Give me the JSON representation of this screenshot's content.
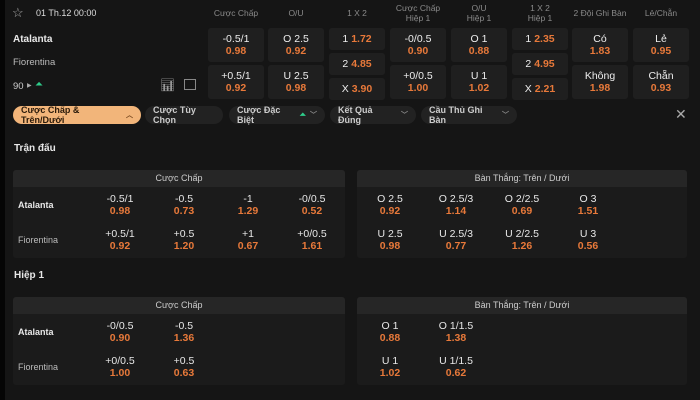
{
  "match": {
    "datetime": "01 Th.12 00:00",
    "home": "Atalanta",
    "away": "Fiorentina",
    "minute": "90"
  },
  "columns": [
    "Cược Chấp",
    "O/U",
    "1 X 2",
    "Cược Chấp\nHiệp 1",
    "O/U\nHiệp 1",
    "1 X 2\nHiệp 1",
    "2 Đội Ghi Bàn",
    "Lẻ/Chẵn"
  ],
  "odds": {
    "hdp": [
      {
        "line": "-0.5/1",
        "price": "0.98"
      },
      {
        "line": "+0.5/1",
        "price": "0.92"
      }
    ],
    "ou": [
      {
        "line": "O 2.5",
        "price": "0.92"
      },
      {
        "line": "U 2.5",
        "price": "0.98"
      }
    ],
    "x12": [
      {
        "line": "1",
        "price": "1.72"
      },
      {
        "line": "2",
        "price": "4.85"
      },
      {
        "line": "X",
        "price": "3.90"
      }
    ],
    "hdp_h1": [
      {
        "line": "-0/0.5",
        "price": "0.90"
      },
      {
        "line": "+0/0.5",
        "price": "1.00"
      }
    ],
    "ou_h1": [
      {
        "line": "O 1",
        "price": "0.88"
      },
      {
        "line": "U 1",
        "price": "1.02"
      }
    ],
    "x12_h1": [
      {
        "line": "1",
        "price": "2.35"
      },
      {
        "line": "2",
        "price": "4.95"
      },
      {
        "line": "X",
        "price": "2.21"
      }
    ],
    "btts": [
      {
        "line": "Có",
        "price": "1.83"
      },
      {
        "line": "Không",
        "price": "1.98"
      }
    ],
    "oddeven": [
      {
        "line": "Lẻ",
        "price": "0.95"
      },
      {
        "line": "Chẵn",
        "price": "0.93"
      }
    ]
  },
  "filters": [
    "Cược Chấp & Trên/Dưới",
    "Cược Tùy Chọn",
    "Cược Đặc Biệt",
    "Kết Quả Đúng",
    "Cầu Thủ Ghi Bàn"
  ],
  "sections": [
    {
      "title": "Trận đấu",
      "hdp_title": "Cược Chấp",
      "ou_title": "Bàn Thắng: Trên / Dưới",
      "hdp": [
        [
          {
            "l": "-0.5/1",
            "p": "0.98"
          },
          {
            "l": "-0.5",
            "p": "0.73"
          },
          {
            "l": "-1",
            "p": "1.29"
          },
          {
            "l": "-0/0.5",
            "p": "0.52"
          }
        ],
        [
          {
            "l": "+0.5/1",
            "p": "0.92"
          },
          {
            "l": "+0.5",
            "p": "1.20"
          },
          {
            "l": "+1",
            "p": "0.67"
          },
          {
            "l": "+0/0.5",
            "p": "1.61"
          }
        ]
      ],
      "ou": [
        [
          {
            "l": "O 2.5",
            "p": "0.92"
          },
          {
            "l": "O 2.5/3",
            "p": "1.14"
          },
          {
            "l": "O 2/2.5",
            "p": "0.69"
          },
          {
            "l": "O 3",
            "p": "1.51"
          }
        ],
        [
          {
            "l": "U 2.5",
            "p": "0.98"
          },
          {
            "l": "U 2.5/3",
            "p": "0.77"
          },
          {
            "l": "U 2/2.5",
            "p": "1.26"
          },
          {
            "l": "U 3",
            "p": "0.56"
          }
        ]
      ]
    },
    {
      "title": "Hiệp 1",
      "hdp_title": "Cược Chấp",
      "ou_title": "Bàn Thắng: Trên / Dưới",
      "hdp": [
        [
          {
            "l": "-0/0.5",
            "p": "0.90"
          },
          {
            "l": "-0.5",
            "p": "1.36"
          }
        ],
        [
          {
            "l": "+0/0.5",
            "p": "1.00"
          },
          {
            "l": "+0.5",
            "p": "0.63"
          }
        ]
      ],
      "ou": [
        [
          {
            "l": "O 1",
            "p": "0.88"
          },
          {
            "l": "O 1/1.5",
            "p": "1.38"
          }
        ],
        [
          {
            "l": "U 1",
            "p": "1.02"
          },
          {
            "l": "U 1/1.5",
            "p": "0.62"
          }
        ]
      ]
    }
  ],
  "colors": {
    "odds": "#e8793a",
    "active_filter": "#f2b57a",
    "live_icon": "#2ecc8a"
  }
}
